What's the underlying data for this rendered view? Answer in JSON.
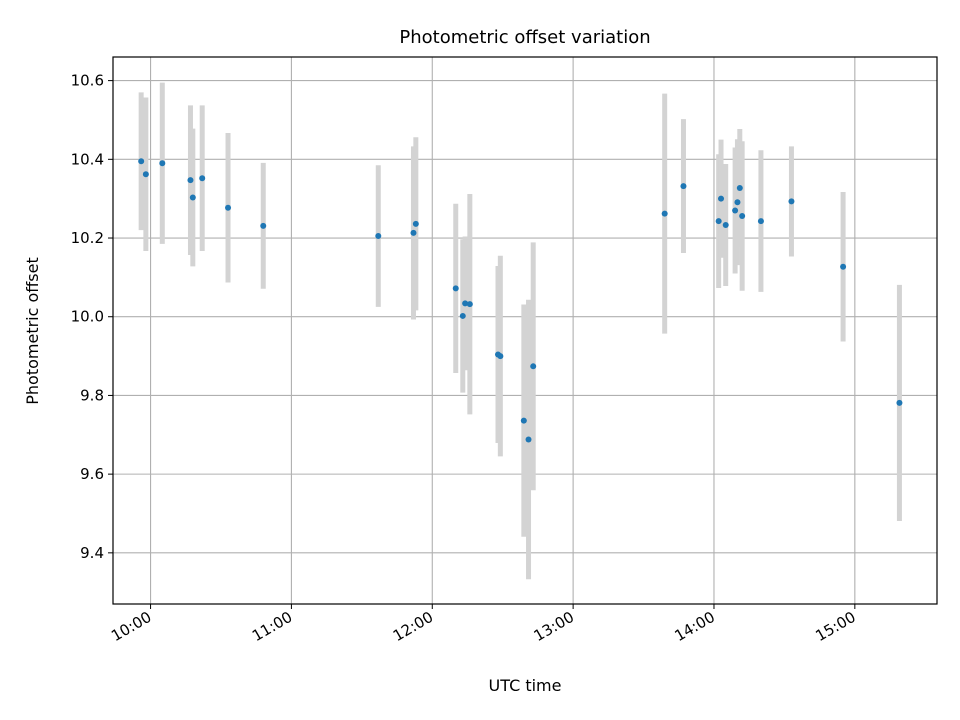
{
  "chart_data": {
    "type": "scatter",
    "title": "Photometric offset variation",
    "xlabel": "UTC time",
    "ylabel": "Photometric offset",
    "xlim": [
      "09:44",
      "15:35"
    ],
    "ylim": [
      9.27,
      10.66
    ],
    "x_ticks": [
      "10:00",
      "11:00",
      "12:00",
      "13:00",
      "14:00",
      "15:00"
    ],
    "y_ticks": [
      9.4,
      9.6,
      9.8,
      10.0,
      10.2,
      10.4,
      10.6
    ],
    "grid": true,
    "point_color": "#1f77b4",
    "errorbar_color": "#d3d3d3",
    "points": [
      {
        "t": "09:56",
        "y": 10.395,
        "err": 0.175
      },
      {
        "t": "09:58",
        "y": 10.362,
        "err": 0.195
      },
      {
        "t": "10:05",
        "y": 10.39,
        "err": 0.205
      },
      {
        "t": "10:17",
        "y": 10.347,
        "err": 0.19
      },
      {
        "t": "10:18",
        "y": 10.303,
        "err": 0.175
      },
      {
        "t": "10:22",
        "y": 10.352,
        "err": 0.185
      },
      {
        "t": "10:33",
        "y": 10.277,
        "err": 0.19
      },
      {
        "t": "10:48",
        "y": 10.231,
        "err": 0.16
      },
      {
        "t": "11:37",
        "y": 10.205,
        "err": 0.18
      },
      {
        "t": "11:52",
        "y": 10.213,
        "err": 0.22
      },
      {
        "t": "11:53",
        "y": 10.236,
        "err": 0.22
      },
      {
        "t": "12:10",
        "y": 10.072,
        "err": 0.215
      },
      {
        "t": "12:13",
        "y": 10.002,
        "err": 0.195
      },
      {
        "t": "12:14",
        "y": 10.034,
        "err": 0.17
      },
      {
        "t": "12:16",
        "y": 10.032,
        "err": 0.28
      },
      {
        "t": "12:28",
        "y": 9.904,
        "err": 0.225
      },
      {
        "t": "12:29",
        "y": 9.9,
        "err": 0.255
      },
      {
        "t": "12:39",
        "y": 9.736,
        "err": 0.295
      },
      {
        "t": "12:41",
        "y": 9.688,
        "err": 0.355
      },
      {
        "t": "12:43",
        "y": 9.874,
        "err": 0.315
      },
      {
        "t": "13:39",
        "y": 10.262,
        "err": 0.305
      },
      {
        "t": "13:47",
        "y": 10.332,
        "err": 0.17
      },
      {
        "t": "14:02",
        "y": 10.243,
        "err": 0.17
      },
      {
        "t": "14:03",
        "y": 10.3,
        "err": 0.15
      },
      {
        "t": "14:05",
        "y": 10.233,
        "err": 0.155
      },
      {
        "t": "14:09",
        "y": 10.27,
        "err": 0.16
      },
      {
        "t": "14:10",
        "y": 10.291,
        "err": 0.16
      },
      {
        "t": "14:11",
        "y": 10.327,
        "err": 0.15
      },
      {
        "t": "14:12",
        "y": 10.256,
        "err": 0.19
      },
      {
        "t": "14:20",
        "y": 10.243,
        "err": 0.18
      },
      {
        "t": "14:33",
        "y": 10.293,
        "err": 0.14
      },
      {
        "t": "14:55",
        "y": 10.127,
        "err": 0.19
      },
      {
        "t": "15:19",
        "y": 9.781,
        "err": 0.3
      }
    ]
  }
}
